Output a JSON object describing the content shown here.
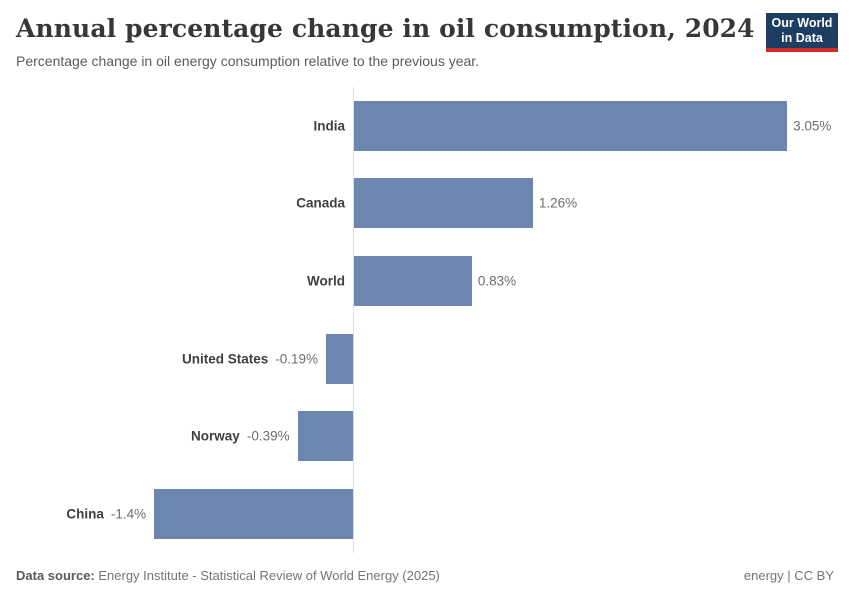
{
  "header": {
    "title": "Annual percentage change in oil consumption, 2024",
    "subtitle": "Percentage change in oil energy consumption relative to the previous year."
  },
  "logo": {
    "line1": "Our World",
    "line2": "in Data",
    "bg_color": "#1d3d63",
    "accent_color": "#cf2c29"
  },
  "chart_data": {
    "type": "bar",
    "orientation": "horizontal",
    "title": "Annual percentage change in oil consumption, 2024",
    "subtitle": "Percentage change in oil energy consumption relative to the previous year.",
    "categories": [
      "India",
      "Canada",
      "World",
      "United States",
      "Norway",
      "China"
    ],
    "values": [
      3.05,
      1.26,
      0.83,
      -0.19,
      -0.39,
      -1.4
    ],
    "value_labels": [
      "3.05%",
      "1.26%",
      "0.83%",
      "-0.19%",
      "-0.39%",
      "-1.4%"
    ],
    "xlabel": "",
    "ylabel": "",
    "xlim": [
      -1.5,
      3.2
    ],
    "grid": false,
    "legend": false,
    "bar_color": "#6c86b0",
    "axis_color": "#dedede",
    "label_color": "#404040",
    "value_color": "#6e6e6e"
  },
  "footer": {
    "datasource_label": "Data source:",
    "datasource_text": " Energy Institute - Statistical Review of World Energy (2025)",
    "license_text": "energy | CC BY"
  }
}
